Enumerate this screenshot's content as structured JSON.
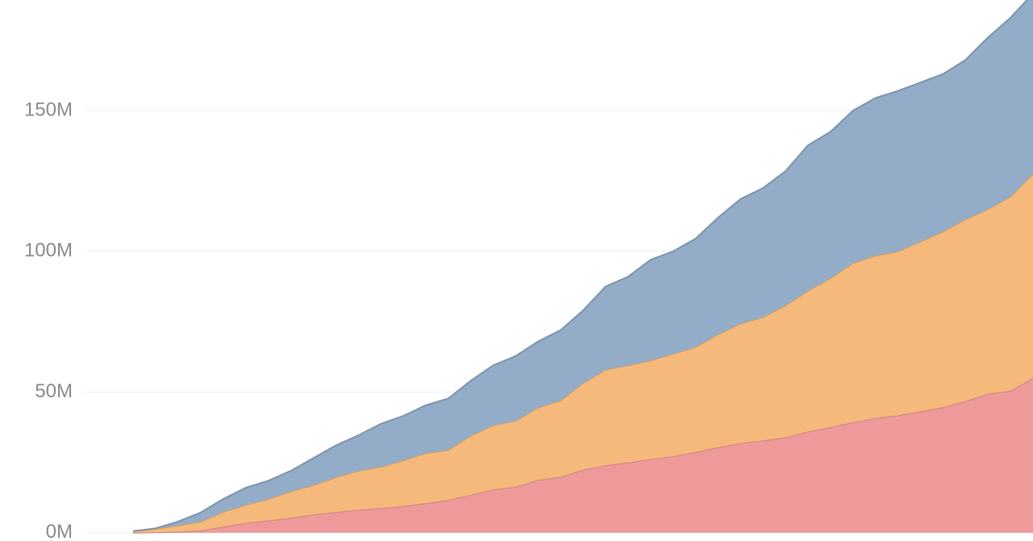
{
  "chart_data": {
    "type": "area",
    "stacked": true,
    "categories": [
      null,
      null,
      null,
      null,
      null,
      null,
      null,
      null,
      null,
      null,
      null,
      null,
      null,
      null,
      null,
      null,
      null,
      null,
      null,
      null,
      null,
      null,
      null,
      null,
      null,
      null,
      null,
      null,
      null,
      null,
      null,
      null,
      null,
      null,
      null,
      null,
      null,
      null,
      null,
      null,
      null
    ],
    "series": [
      {
        "color": "#ee9a9b",
        "values": [
          0,
          0.2,
          0.4,
          0.8,
          2.2,
          3.5,
          4.4,
          5.3,
          6.5,
          7.4,
          8.2,
          8.8,
          9.5,
          10.5,
          11.7,
          13.5,
          15.4,
          16.4,
          18.8,
          19.9,
          22.4,
          24,
          25,
          26.2,
          27.2,
          28.7,
          30.4,
          31.9,
          32.8,
          34,
          36,
          37.5,
          39.3,
          40.8,
          41.7,
          43.2,
          44.6,
          46.8,
          49.4,
          50.5,
          55
        ]
      },
      {
        "color": "#f5ba7b",
        "values": [
          0.6,
          1.2,
          2.2,
          3.2,
          5.2,
          6.4,
          7.6,
          9.4,
          10.4,
          12.3,
          13.8,
          14.7,
          16.2,
          17.8,
          17.7,
          21,
          22.8,
          23.4,
          25.7,
          27.1,
          30.8,
          34,
          34.5,
          35,
          36.4,
          37.3,
          40.1,
          42.4,
          43.8,
          46.8,
          50,
          53,
          56.5,
          57.7,
          58.3,
          60.3,
          62.4,
          64.6,
          65.6,
          69,
          72.6
        ]
      },
      {
        "color": "#93adc8",
        "values": [
          0,
          0.2,
          1.4,
          3.2,
          4.6,
          6.1,
          6.5,
          7.3,
          9.6,
          11.3,
          12.6,
          15.2,
          15.8,
          17,
          18.3,
          19.5,
          21.3,
          23,
          23.5,
          25,
          25.8,
          29.5,
          31.5,
          35.8,
          36.4,
          38.5,
          41.5,
          44.3,
          45.9,
          47.7,
          51.7,
          52,
          54.2,
          56,
          57,
          56.5,
          56,
          56.6,
          61,
          63.5,
          64
        ]
      }
    ],
    "ylim": [
      -2.9,
      189.3
    ],
    "yticks": [
      {
        "value": 0,
        "label": "0M"
      },
      {
        "value": 50,
        "label": "50M"
      },
      {
        "value": 100,
        "label": "100M"
      },
      {
        "value": 150,
        "label": "150M"
      }
    ],
    "grid": true
  }
}
